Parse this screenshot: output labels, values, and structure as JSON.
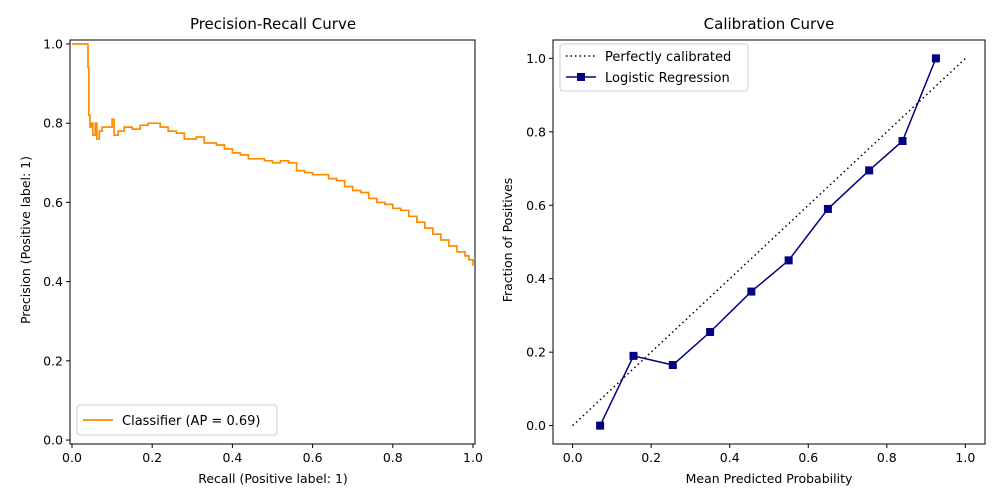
{
  "chart_data": [
    {
      "type": "line",
      "title": "Precision-Recall Curve",
      "xlabel": "Recall (Positive label: 1)",
      "ylabel": "Precision (Positive label: 1)",
      "xlim": [
        -0.005,
        1.005
      ],
      "ylim": [
        -0.01,
        1.01
      ],
      "xticks": [
        0.0,
        0.2,
        0.4,
        0.6,
        0.8,
        1.0
      ],
      "xtick_labels": [
        "0.0",
        "0.2",
        "0.4",
        "0.6",
        "0.8",
        "1.0"
      ],
      "yticks": [
        0.0,
        0.2,
        0.4,
        0.6,
        0.8,
        1.0
      ],
      "ytick_labels": [
        "0.0",
        "0.2",
        "0.4",
        "0.6",
        "0.8",
        "1.0"
      ],
      "grid": false,
      "legend_position": "lower-left",
      "series": [
        {
          "name": "Classifier (AP = 0.69)",
          "color": "#ff8c00",
          "style": "step",
          "x": [
            0.0,
            0.04,
            0.04,
            0.042,
            0.045,
            0.048,
            0.052,
            0.058,
            0.062,
            0.068,
            0.075,
            0.085,
            0.1,
            0.105,
            0.115,
            0.13,
            0.15,
            0.17,
            0.19,
            0.2,
            0.22,
            0.24,
            0.26,
            0.28,
            0.31,
            0.33,
            0.36,
            0.38,
            0.4,
            0.42,
            0.44,
            0.46,
            0.48,
            0.5,
            0.52,
            0.54,
            0.56,
            0.58,
            0.6,
            0.62,
            0.64,
            0.66,
            0.68,
            0.7,
            0.72,
            0.74,
            0.76,
            0.78,
            0.8,
            0.82,
            0.84,
            0.86,
            0.88,
            0.9,
            0.92,
            0.94,
            0.96,
            0.98,
            0.99,
            1.0
          ],
          "y": [
            1.0,
            1.0,
            0.94,
            0.82,
            0.79,
            0.8,
            0.77,
            0.8,
            0.76,
            0.78,
            0.79,
            0.79,
            0.81,
            0.77,
            0.78,
            0.79,
            0.785,
            0.795,
            0.8,
            0.8,
            0.79,
            0.78,
            0.775,
            0.76,
            0.765,
            0.75,
            0.745,
            0.735,
            0.725,
            0.72,
            0.71,
            0.71,
            0.705,
            0.7,
            0.705,
            0.7,
            0.68,
            0.675,
            0.67,
            0.67,
            0.66,
            0.655,
            0.64,
            0.63,
            0.625,
            0.61,
            0.6,
            0.595,
            0.585,
            0.58,
            0.565,
            0.55,
            0.535,
            0.52,
            0.505,
            0.49,
            0.475,
            0.465,
            0.455,
            0.44
          ]
        }
      ]
    },
    {
      "type": "line",
      "title": "Calibration Curve",
      "xlabel": "Mean Predicted Probability",
      "ylabel": "Fraction of Positives",
      "xlim": [
        -0.05,
        1.05
      ],
      "ylim": [
        -0.05,
        1.05
      ],
      "xticks": [
        0.0,
        0.2,
        0.4,
        0.6,
        0.8,
        1.0
      ],
      "xtick_labels": [
        "0.0",
        "0.2",
        "0.4",
        "0.6",
        "0.8",
        "1.0"
      ],
      "yticks": [
        0.0,
        0.2,
        0.4,
        0.6,
        0.8,
        1.0
      ],
      "ytick_labels": [
        "0.0",
        "0.2",
        "0.4",
        "0.6",
        "0.8",
        "1.0"
      ],
      "grid": false,
      "legend_position": "top-left",
      "series": [
        {
          "name": "Perfectly calibrated",
          "color": "#000000",
          "style": "dotted",
          "x": [
            0.0,
            1.0
          ],
          "y": [
            0.0,
            1.0
          ]
        },
        {
          "name": "Logistic Regression",
          "color": "#000080",
          "style": "line-square-markers",
          "x": [
            0.07,
            0.155,
            0.255,
            0.35,
            0.455,
            0.55,
            0.65,
            0.755,
            0.84,
            0.925
          ],
          "y": [
            0.0,
            0.19,
            0.165,
            0.255,
            0.365,
            0.45,
            0.59,
            0.695,
            0.775,
            1.0
          ]
        }
      ]
    }
  ]
}
